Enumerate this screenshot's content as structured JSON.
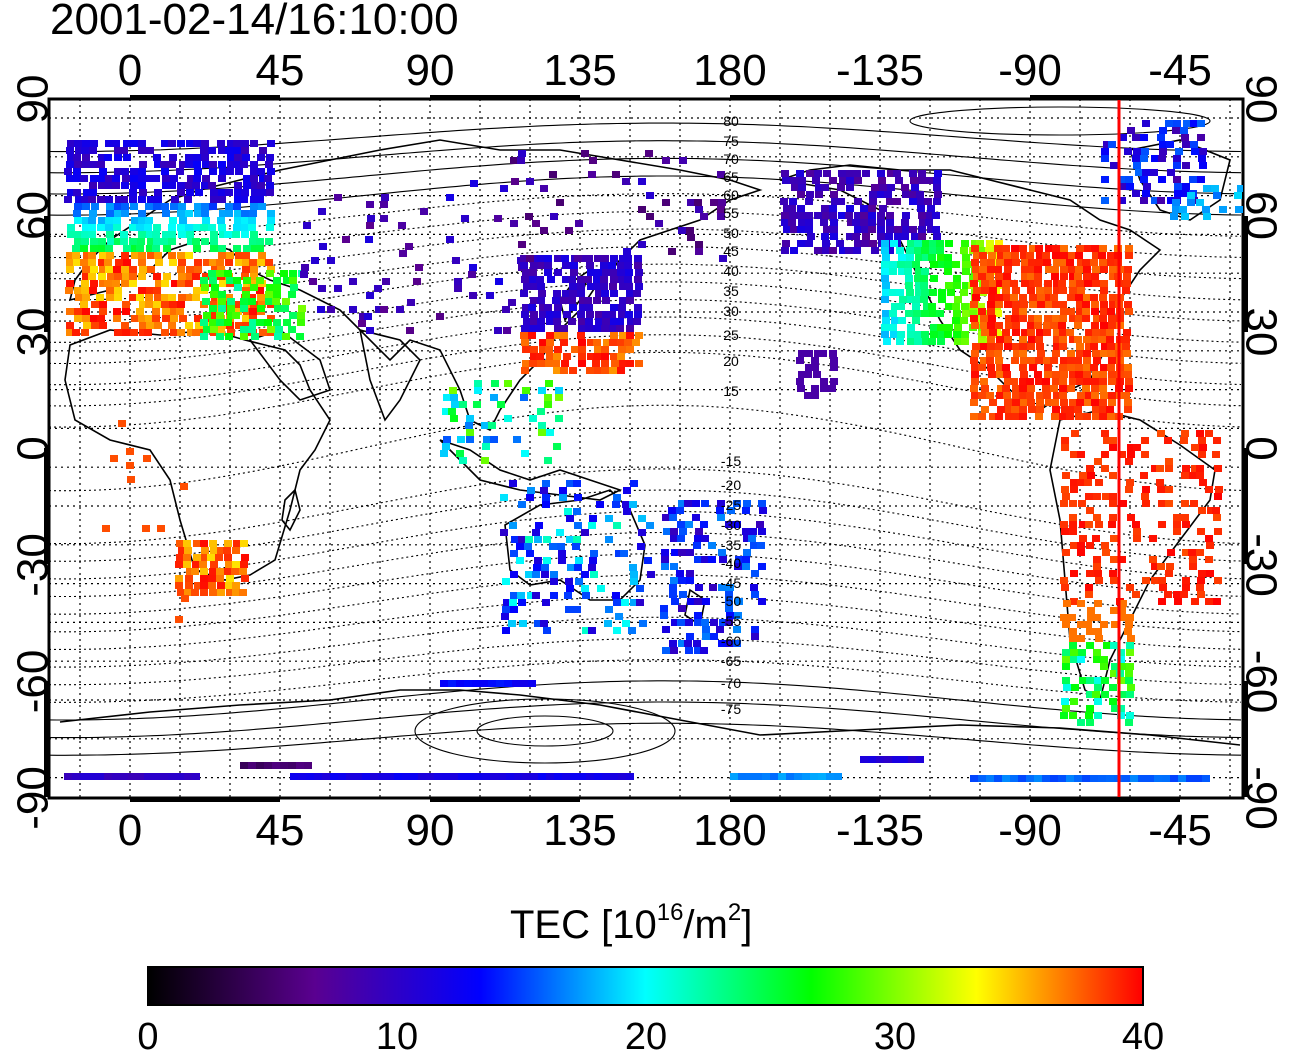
{
  "timestamp": "2001-02-14/16:10:00",
  "map": {
    "top_lon_labels": [
      "0",
      "45",
      "90",
      "135",
      "180",
      "-135",
      "-90",
      "-45"
    ],
    "bottom_lon_labels": [
      "0",
      "45",
      "90",
      "135",
      "180",
      "-135",
      "-90",
      "-45"
    ],
    "lat_labels": [
      "90",
      "60",
      "30",
      "0",
      "-30",
      "-60",
      "-90"
    ],
    "mlat_contour_labels_north": [
      "80",
      "75",
      "70",
      "65",
      "60",
      "55",
      "50",
      "45",
      "40",
      "35",
      "30",
      "25",
      "20",
      "15"
    ],
    "mlat_contour_labels_south": [
      "-15",
      "-20",
      "-25",
      "-30",
      "-35",
      "-40",
      "-45",
      "-50",
      "-55",
      "-60",
      "-65",
      "-70",
      "-75"
    ],
    "terminator_color": "#ff0000",
    "coastline_color": "#000000",
    "grid_style": "dotted"
  },
  "colorbar": {
    "title_main": "TEC  [10",
    "title_exp1": "16",
    "title_mid": "/m",
    "title_exp2": "2",
    "title_end": "]",
    "tick_labels": [
      "0",
      "10",
      "20",
      "30",
      "40"
    ],
    "range": [
      0,
      40
    ],
    "colormap": [
      "#000000",
      "#5a0090",
      "#0000ff",
      "#00ffff",
      "#00ff00",
      "#ffff00",
      "#ff0000"
    ]
  },
  "data_regions": [
    {
      "name": "europe",
      "level": "high"
    },
    {
      "name": "north-america",
      "level": "high"
    },
    {
      "name": "japan",
      "level": "medium-low"
    },
    {
      "name": "south-america",
      "level": "high"
    },
    {
      "name": "southern-africa",
      "level": "high"
    },
    {
      "name": "australia-nz",
      "level": "medium"
    },
    {
      "name": "antarctica",
      "level": "low"
    }
  ]
}
